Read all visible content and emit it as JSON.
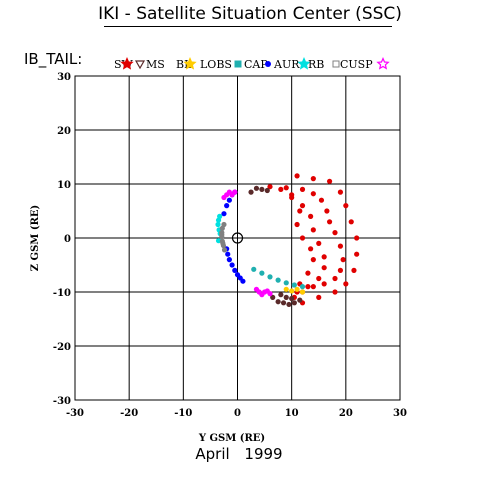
{
  "header": {
    "title": "IKI - Satellite Situation Center (SSC)",
    "legend_label": "IB_TAIL:"
  },
  "footer": {
    "date": "April   1999"
  },
  "chart_data": {
    "type": "scatter",
    "title": "IKI - Satellite Situation Center (SSC)",
    "xlabel": "Y GSM (RE)",
    "ylabel": "Z GSM (RE)",
    "xlim": [
      -30,
      30
    ],
    "ylim": [
      -30,
      30
    ],
    "xticks": [
      -30,
      -20,
      -10,
      0,
      10,
      20,
      30
    ],
    "yticks": [
      -30,
      -20,
      -10,
      0,
      10,
      20,
      30
    ],
    "grid": true,
    "legend_position": "top",
    "legend": [
      {
        "name": "SW",
        "symbol": "star",
        "color": "#e00000"
      },
      {
        "name": "MS",
        "symbol": "triangle-down",
        "color": "#5a2a2a"
      },
      {
        "name": "BL",
        "symbol": "star",
        "color": "#ffcc00"
      },
      {
        "name": "LOBS",
        "symbol": "square",
        "color": "#20b0b0"
      },
      {
        "name": "CAP",
        "symbol": "circle",
        "color": "#0000ff"
      },
      {
        "name": "AUR",
        "symbol": "star",
        "color": "#00e0e0"
      },
      {
        "name": "RB",
        "symbol": "square",
        "color": "#808080"
      },
      {
        "name": "CUSP",
        "symbol": "star",
        "color": "#ff00ff"
      }
    ],
    "earth_marker": {
      "x": 0,
      "y": 0
    },
    "series": [
      {
        "name": "SW",
        "color": "#e00000",
        "points": [
          [
            6,
            9.5
          ],
          [
            9,
            9.3
          ],
          [
            12,
            9
          ],
          [
            14,
            8.2
          ],
          [
            15.5,
            7
          ],
          [
            16.5,
            5
          ],
          [
            17,
            3
          ],
          [
            18,
            1
          ],
          [
            19,
            -1.5
          ],
          [
            19.5,
            -4
          ],
          [
            19,
            -6
          ],
          [
            18,
            -7.5
          ],
          [
            16,
            -8.5
          ],
          [
            14,
            -9
          ],
          [
            12,
            -10
          ],
          [
            10.5,
            -11
          ],
          [
            11,
            11.5
          ],
          [
            14,
            11
          ],
          [
            17,
            10.5
          ],
          [
            19,
            8.5
          ],
          [
            20,
            6
          ],
          [
            21,
            3
          ],
          [
            22,
            0
          ],
          [
            22,
            -3
          ],
          [
            21.5,
            -6
          ],
          [
            20,
            -8.5
          ],
          [
            18,
            -10
          ],
          [
            15,
            -11
          ],
          [
            12,
            -12
          ],
          [
            8,
            9
          ],
          [
            10,
            7.5
          ],
          [
            12,
            6
          ],
          [
            13.5,
            4
          ],
          [
            14,
            1.5
          ],
          [
            15,
            -1
          ],
          [
            16,
            -3.5
          ],
          [
            16,
            -5.5
          ],
          [
            15,
            -7.5
          ],
          [
            13,
            -9
          ],
          [
            11,
            -10
          ],
          [
            10,
            8
          ],
          [
            11.5,
            5
          ],
          [
            11,
            2.5
          ],
          [
            12,
            0
          ],
          [
            13.5,
            -2
          ],
          [
            14,
            -4
          ],
          [
            13,
            -6.5
          ],
          [
            11.5,
            -8.5
          ]
        ]
      },
      {
        "name": "MS",
        "color": "#5a2a2a",
        "points": [
          [
            2.5,
            8.5
          ],
          [
            3.5,
            9.2
          ],
          [
            4.5,
            9
          ],
          [
            5.5,
            8.8
          ],
          [
            6.5,
            -11
          ],
          [
            7.5,
            -11.8
          ],
          [
            8.5,
            -12
          ],
          [
            9.5,
            -12.3
          ],
          [
            10.5,
            -12
          ],
          [
            11.5,
            -11.5
          ],
          [
            8,
            -10.5
          ],
          [
            9,
            -11
          ],
          [
            10,
            -11.2
          ]
        ]
      },
      {
        "name": "BL",
        "color": "#ffcc00",
        "points": [
          [
            9,
            -9.5
          ],
          [
            10,
            -9.8
          ],
          [
            11,
            -9.5
          ],
          [
            12,
            -10
          ]
        ]
      },
      {
        "name": "LOBS",
        "color": "#20b0b0",
        "points": [
          [
            3,
            -5.8
          ],
          [
            4.5,
            -6.5
          ],
          [
            6,
            -7.2
          ],
          [
            7.5,
            -7.8
          ],
          [
            9,
            -8.3
          ],
          [
            10.5,
            -8.7
          ],
          [
            12,
            -9
          ]
        ]
      },
      {
        "name": "CAP",
        "color": "#0000ff",
        "points": [
          [
            -2.5,
            4.5
          ],
          [
            -2,
            6
          ],
          [
            -1.5,
            7
          ],
          [
            -1,
            8
          ],
          [
            -0.5,
            8.5
          ],
          [
            -2,
            -2
          ],
          [
            -1.8,
            -3
          ],
          [
            -1.5,
            -4
          ],
          [
            -1,
            -5
          ],
          [
            -0.5,
            -6
          ],
          [
            0,
            -6.8
          ],
          [
            0.5,
            -7.4
          ],
          [
            1,
            -8
          ]
        ]
      },
      {
        "name": "AUR",
        "color": "#00e0e0",
        "points": [
          [
            -3.3,
            4
          ],
          [
            -3.5,
            3.3
          ],
          [
            -3.6,
            2.5
          ],
          [
            -3.4,
            1.5
          ],
          [
            -3.2,
            0.8
          ],
          [
            -3.5,
            -0.5
          ]
        ]
      },
      {
        "name": "RB",
        "color": "#808080",
        "points": [
          [
            -2.5,
            2.5
          ],
          [
            -2.8,
            1.8
          ],
          [
            -2.9,
            1
          ],
          [
            -2.9,
            0.2
          ],
          [
            -2.8,
            -0.6
          ],
          [
            -2.6,
            -1.4
          ],
          [
            -2.4,
            -2.2
          ],
          [
            -2.7,
            -1
          ],
          [
            -2.9,
            0.6
          ]
        ]
      },
      {
        "name": "CUSP",
        "color": "#ff00ff",
        "points": [
          [
            -2.5,
            7.5
          ],
          [
            -2,
            8
          ],
          [
            -1.5,
            8.5
          ],
          [
            -1,
            8
          ],
          [
            -0.5,
            8.5
          ],
          [
            3.5,
            -9.5
          ],
          [
            4,
            -10
          ],
          [
            4.5,
            -10.5
          ],
          [
            5,
            -10
          ],
          [
            5.5,
            -9.8
          ],
          [
            6,
            -10.3
          ]
        ]
      }
    ]
  }
}
